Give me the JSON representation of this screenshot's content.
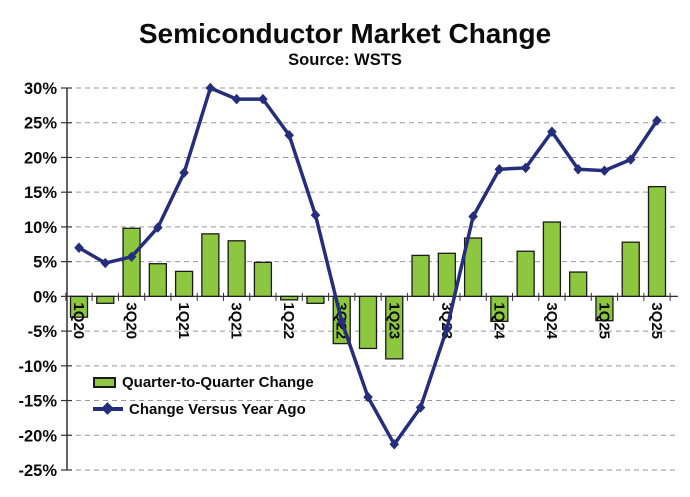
{
  "header": {
    "title": "Semiconductor Market Change",
    "subtitle": "Source: WSTS"
  },
  "chart_data": {
    "type": "bar+line",
    "title": "Semiconductor Market Change",
    "subtitle": "Source: WSTS",
    "categories": [
      "1Q20",
      "2Q20",
      "3Q20",
      "4Q20",
      "1Q21",
      "2Q21",
      "3Q21",
      "4Q21",
      "1Q22",
      "2Q22",
      "3Q22",
      "4Q22",
      "1Q23",
      "2Q23",
      "3Q23",
      "4Q23",
      "1Q24",
      "2Q24",
      "3Q24",
      "4Q24",
      "1Q25",
      "2Q25",
      "3Q25"
    ],
    "x_tick_labels": [
      "1Q20",
      "3Q20",
      "1Q21",
      "3Q21",
      "1Q22",
      "3Q22",
      "1Q23",
      "3Q23",
      "1Q24",
      "3Q24",
      "1Q25",
      "3Q25"
    ],
    "series": [
      {
        "name": "Quarter-to-Quarter Change",
        "type": "bar",
        "color": "#8DC63F",
        "border_color": "#1a1a1a",
        "values": [
          -3.0,
          -1.0,
          9.8,
          4.7,
          3.6,
          9.0,
          8.0,
          4.9,
          -0.5,
          -1.0,
          -6.8,
          -7.5,
          -9.0,
          5.9,
          6.2,
          8.4,
          -3.6,
          6.5,
          10.7,
          3.5,
          -3.5,
          7.8,
          15.8
        ]
      },
      {
        "name": "Change Versus Year Ago",
        "type": "line",
        "color": "#252E7D",
        "marker": "diamond",
        "values": [
          7.0,
          4.8,
          5.7,
          9.9,
          17.8,
          30.0,
          28.4,
          28.4,
          23.2,
          11.7,
          -3.6,
          -14.5,
          -21.3,
          -16.0,
          -4.7,
          11.5,
          18.3,
          18.5,
          23.7,
          18.3,
          18.1,
          19.7,
          25.3
        ]
      }
    ],
    "y_axis": {
      "min": -25,
      "max": 30,
      "step": 5,
      "tick_suffix": "%",
      "labels": [
        "30%",
        "25%",
        "20%",
        "15%",
        "10%",
        "5%",
        "0%",
        "-5%",
        "-10%",
        "-15%",
        "-20%",
        "-25%"
      ]
    },
    "grid": {
      "horizontal": "dashed",
      "color": "#999999",
      "zero_line_color": "#333333"
    },
    "legend_position": "inside-bottom-left"
  }
}
